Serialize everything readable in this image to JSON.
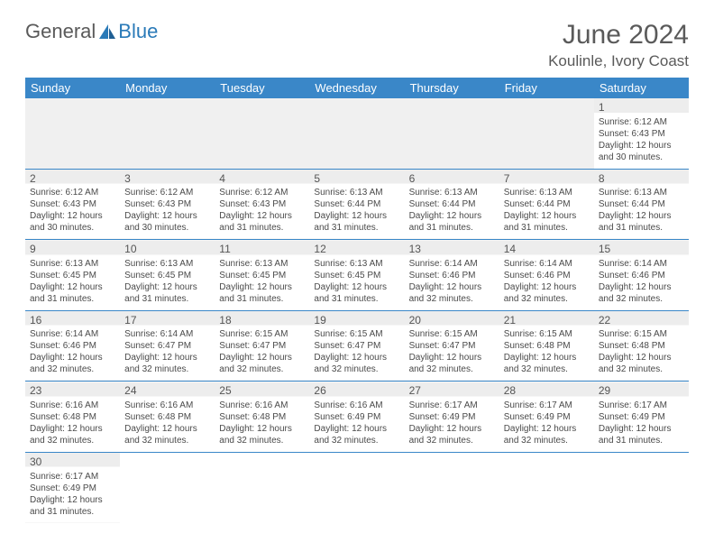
{
  "logo": {
    "text1": "General",
    "text2": "Blue"
  },
  "title": "June 2024",
  "location": "Koulinle, Ivory Coast",
  "colors": {
    "header_bg": "#3a87c8",
    "header_text": "#ffffff",
    "text": "#4a4a4a",
    "accent": "#2a7ab8"
  },
  "weekdays": [
    "Sunday",
    "Monday",
    "Tuesday",
    "Wednesday",
    "Thursday",
    "Friday",
    "Saturday"
  ],
  "weeks": [
    [
      null,
      null,
      null,
      null,
      null,
      null,
      {
        "n": "1",
        "sr": "Sunrise: 6:12 AM",
        "ss": "Sunset: 6:43 PM",
        "d1": "Daylight: 12 hours",
        "d2": "and 30 minutes."
      }
    ],
    [
      {
        "n": "2",
        "sr": "Sunrise: 6:12 AM",
        "ss": "Sunset: 6:43 PM",
        "d1": "Daylight: 12 hours",
        "d2": "and 30 minutes."
      },
      {
        "n": "3",
        "sr": "Sunrise: 6:12 AM",
        "ss": "Sunset: 6:43 PM",
        "d1": "Daylight: 12 hours",
        "d2": "and 30 minutes."
      },
      {
        "n": "4",
        "sr": "Sunrise: 6:12 AM",
        "ss": "Sunset: 6:43 PM",
        "d1": "Daylight: 12 hours",
        "d2": "and 31 minutes."
      },
      {
        "n": "5",
        "sr": "Sunrise: 6:13 AM",
        "ss": "Sunset: 6:44 PM",
        "d1": "Daylight: 12 hours",
        "d2": "and 31 minutes."
      },
      {
        "n": "6",
        "sr": "Sunrise: 6:13 AM",
        "ss": "Sunset: 6:44 PM",
        "d1": "Daylight: 12 hours",
        "d2": "and 31 minutes."
      },
      {
        "n": "7",
        "sr": "Sunrise: 6:13 AM",
        "ss": "Sunset: 6:44 PM",
        "d1": "Daylight: 12 hours",
        "d2": "and 31 minutes."
      },
      {
        "n": "8",
        "sr": "Sunrise: 6:13 AM",
        "ss": "Sunset: 6:44 PM",
        "d1": "Daylight: 12 hours",
        "d2": "and 31 minutes."
      }
    ],
    [
      {
        "n": "9",
        "sr": "Sunrise: 6:13 AM",
        "ss": "Sunset: 6:45 PM",
        "d1": "Daylight: 12 hours",
        "d2": "and 31 minutes."
      },
      {
        "n": "10",
        "sr": "Sunrise: 6:13 AM",
        "ss": "Sunset: 6:45 PM",
        "d1": "Daylight: 12 hours",
        "d2": "and 31 minutes."
      },
      {
        "n": "11",
        "sr": "Sunrise: 6:13 AM",
        "ss": "Sunset: 6:45 PM",
        "d1": "Daylight: 12 hours",
        "d2": "and 31 minutes."
      },
      {
        "n": "12",
        "sr": "Sunrise: 6:13 AM",
        "ss": "Sunset: 6:45 PM",
        "d1": "Daylight: 12 hours",
        "d2": "and 31 minutes."
      },
      {
        "n": "13",
        "sr": "Sunrise: 6:14 AM",
        "ss": "Sunset: 6:46 PM",
        "d1": "Daylight: 12 hours",
        "d2": "and 32 minutes."
      },
      {
        "n": "14",
        "sr": "Sunrise: 6:14 AM",
        "ss": "Sunset: 6:46 PM",
        "d1": "Daylight: 12 hours",
        "d2": "and 32 minutes."
      },
      {
        "n": "15",
        "sr": "Sunrise: 6:14 AM",
        "ss": "Sunset: 6:46 PM",
        "d1": "Daylight: 12 hours",
        "d2": "and 32 minutes."
      }
    ],
    [
      {
        "n": "16",
        "sr": "Sunrise: 6:14 AM",
        "ss": "Sunset: 6:46 PM",
        "d1": "Daylight: 12 hours",
        "d2": "and 32 minutes."
      },
      {
        "n": "17",
        "sr": "Sunrise: 6:14 AM",
        "ss": "Sunset: 6:47 PM",
        "d1": "Daylight: 12 hours",
        "d2": "and 32 minutes."
      },
      {
        "n": "18",
        "sr": "Sunrise: 6:15 AM",
        "ss": "Sunset: 6:47 PM",
        "d1": "Daylight: 12 hours",
        "d2": "and 32 minutes."
      },
      {
        "n": "19",
        "sr": "Sunrise: 6:15 AM",
        "ss": "Sunset: 6:47 PM",
        "d1": "Daylight: 12 hours",
        "d2": "and 32 minutes."
      },
      {
        "n": "20",
        "sr": "Sunrise: 6:15 AM",
        "ss": "Sunset: 6:47 PM",
        "d1": "Daylight: 12 hours",
        "d2": "and 32 minutes."
      },
      {
        "n": "21",
        "sr": "Sunrise: 6:15 AM",
        "ss": "Sunset: 6:48 PM",
        "d1": "Daylight: 12 hours",
        "d2": "and 32 minutes."
      },
      {
        "n": "22",
        "sr": "Sunrise: 6:15 AM",
        "ss": "Sunset: 6:48 PM",
        "d1": "Daylight: 12 hours",
        "d2": "and 32 minutes."
      }
    ],
    [
      {
        "n": "23",
        "sr": "Sunrise: 6:16 AM",
        "ss": "Sunset: 6:48 PM",
        "d1": "Daylight: 12 hours",
        "d2": "and 32 minutes."
      },
      {
        "n": "24",
        "sr": "Sunrise: 6:16 AM",
        "ss": "Sunset: 6:48 PM",
        "d1": "Daylight: 12 hours",
        "d2": "and 32 minutes."
      },
      {
        "n": "25",
        "sr": "Sunrise: 6:16 AM",
        "ss": "Sunset: 6:48 PM",
        "d1": "Daylight: 12 hours",
        "d2": "and 32 minutes."
      },
      {
        "n": "26",
        "sr": "Sunrise: 6:16 AM",
        "ss": "Sunset: 6:49 PM",
        "d1": "Daylight: 12 hours",
        "d2": "and 32 minutes."
      },
      {
        "n": "27",
        "sr": "Sunrise: 6:17 AM",
        "ss": "Sunset: 6:49 PM",
        "d1": "Daylight: 12 hours",
        "d2": "and 32 minutes."
      },
      {
        "n": "28",
        "sr": "Sunrise: 6:17 AM",
        "ss": "Sunset: 6:49 PM",
        "d1": "Daylight: 12 hours",
        "d2": "and 32 minutes."
      },
      {
        "n": "29",
        "sr": "Sunrise: 6:17 AM",
        "ss": "Sunset: 6:49 PM",
        "d1": "Daylight: 12 hours",
        "d2": "and 31 minutes."
      }
    ],
    [
      {
        "n": "30",
        "sr": "Sunrise: 6:17 AM",
        "ss": "Sunset: 6:49 PM",
        "d1": "Daylight: 12 hours",
        "d2": "and 31 minutes."
      },
      null,
      null,
      null,
      null,
      null,
      null
    ]
  ]
}
